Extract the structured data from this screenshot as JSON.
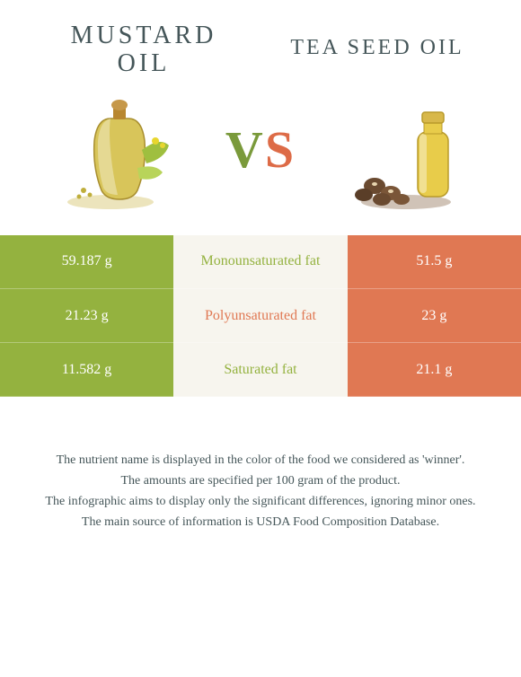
{
  "titles": {
    "left_line1": "MUSTARD",
    "left_line2": "OIL",
    "right": "TEA SEED OIL",
    "vs_v": "V",
    "vs_s": "S"
  },
  "colors": {
    "left": "#94b23f",
    "right": "#e07853",
    "mid_bg": "#f7f5ee",
    "text_dark": "#455659"
  },
  "rows": [
    {
      "left": "59.187 g",
      "label": "Monounsaturated fat",
      "right": "51.5 g",
      "label_color": "#94b23f"
    },
    {
      "left": "21.23 g",
      "label": "Polyunsaturated fat",
      "right": "23 g",
      "label_color": "#e07853"
    },
    {
      "left": "11.582 g",
      "label": "Saturated fat",
      "right": "21.1 g",
      "label_color": "#94b23f"
    }
  ],
  "footnotes": [
    "The nutrient name is displayed in the color of the food we considered as 'winner'.",
    "The amounts are specified per 100 gram of the product.",
    "The infographic aims to display only the significant differences, ignoring minor ones.",
    "The main source of information is USDA Food Composition Database."
  ]
}
